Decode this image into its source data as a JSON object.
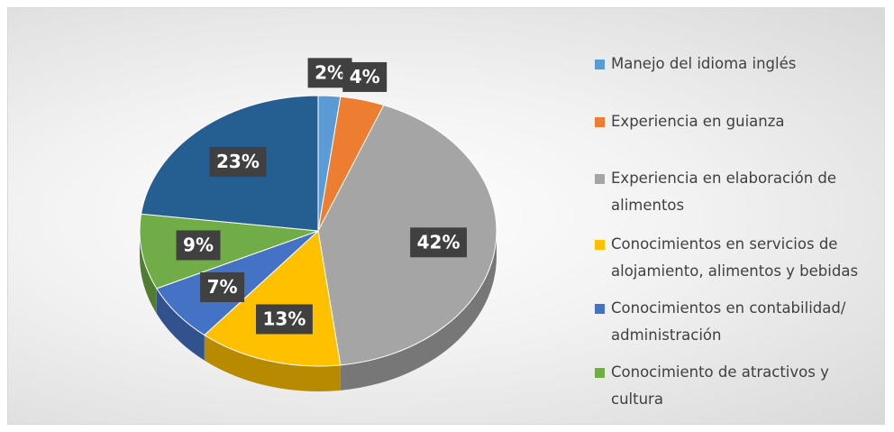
{
  "chart_data": {
    "type": "pie3d",
    "categories": [
      "Manejo del idioma inglés",
      "Experiencia en guianza",
      "Experiencia en elaboración de alimentos",
      "Conocimientos en servicios de alojamiento, alimentos y bebidas",
      "Conocimientos en contabilidad/ administración",
      "Conocimiento de atractivos y cultura",
      null
    ],
    "values": [
      2,
      4,
      42,
      13,
      7,
      9,
      23
    ],
    "value_labels": [
      "2%",
      "4%",
      "42%",
      "13%",
      "7%",
      "9%",
      "23%"
    ],
    "colors": [
      "#5b9bd5",
      "#ed7d31",
      "#a5a5a5",
      "#ffc000",
      "#4472c4",
      "#70ad47",
      "#255e91"
    ],
    "legend": "right"
  }
}
